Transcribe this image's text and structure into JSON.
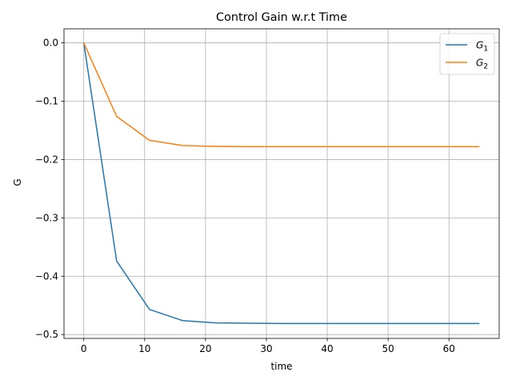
{
  "chart_data": {
    "type": "line",
    "title": "Control Gain w.r.t Time",
    "xlabel": "time",
    "ylabel": "G",
    "xlim": [
      -3.25,
      68.25
    ],
    "ylim": [
      -0.5066,
      0.0241
    ],
    "xticks": [
      0,
      10,
      20,
      30,
      40,
      50,
      60
    ],
    "yticks": [
      0.0,
      -0.1,
      -0.2,
      -0.3,
      -0.4,
      -0.5
    ],
    "xtick_labels": [
      "0",
      "10",
      "20",
      "30",
      "40",
      "50",
      "60"
    ],
    "ytick_labels": [
      "0.0",
      "−0.1",
      "−0.2",
      "−0.3",
      "−0.4",
      "−0.5"
    ],
    "grid": true,
    "legend_position": "top-right",
    "x": [
      0,
      5.4,
      10.8,
      16.2,
      21.6,
      27,
      32.4,
      37.8,
      43.2,
      48.6,
      54,
      59.4,
      65
    ],
    "series": [
      {
        "name_base": "G",
        "name_sub": "1",
        "color": "#1f77b4",
        "values": [
          0.0,
          -0.374,
          -0.457,
          -0.476,
          -0.48,
          -0.4805,
          -0.481,
          -0.481,
          -0.481,
          -0.481,
          -0.481,
          -0.481,
          -0.481
        ]
      },
      {
        "name_base": "G",
        "name_sub": "2",
        "color": "#ff7f0e",
        "values": [
          0.0,
          -0.126,
          -0.167,
          -0.176,
          -0.1775,
          -0.178,
          -0.178,
          -0.178,
          -0.178,
          -0.178,
          -0.178,
          -0.178,
          -0.178
        ]
      }
    ]
  }
}
